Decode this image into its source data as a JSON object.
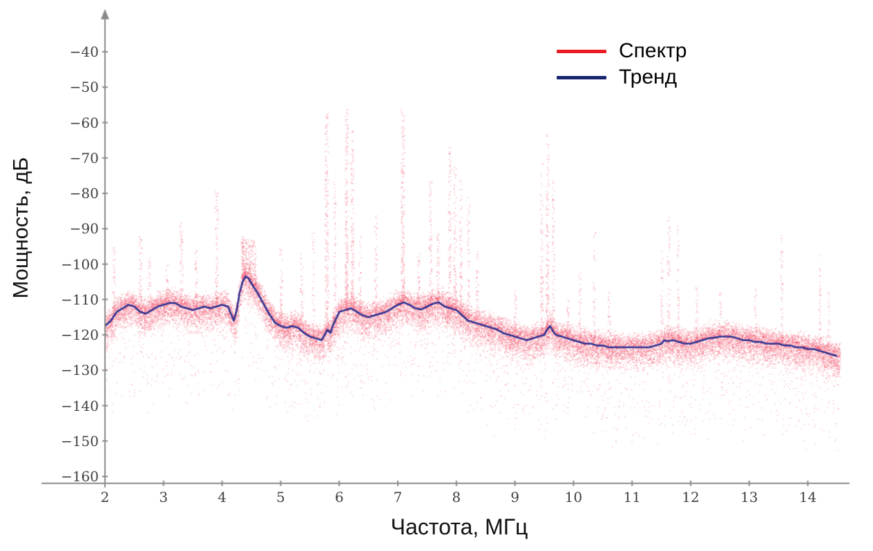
{
  "chart_data": {
    "type": "scatter",
    "title": "",
    "xlabel": "Частота, МГц",
    "ylabel": "Мощность, дБ",
    "xlim": [
      2,
      14.6
    ],
    "ylim": [
      -160,
      -40
    ],
    "grid": false,
    "legend_position": "top-right",
    "axis_color": "#8a8a8a",
    "tick_text_color": "#3f3f3f",
    "xticks": [
      2,
      3,
      4,
      5,
      6,
      7,
      8,
      9,
      10,
      11,
      12,
      13,
      14
    ],
    "xtick_labels": [
      "2",
      "3",
      "4",
      "5",
      "6",
      "7",
      "8",
      "9",
      "10",
      "11",
      "12",
      "13",
      "14"
    ],
    "yticks": [
      -40,
      -50,
      -60,
      -70,
      -80,
      -90,
      -100,
      -110,
      -120,
      -130,
      -140,
      -150,
      -160
    ],
    "ytick_labels": [
      "−40",
      "−50",
      "−60",
      "−70",
      "−80",
      "−90",
      "−100",
      "−110",
      "−120",
      "−130",
      "−140",
      "−150",
      "−160"
    ],
    "legend": [
      {
        "label": "Спектр",
        "color": "#ed1c24"
      },
      {
        "label": "Тренд",
        "color": "#16256e"
      }
    ],
    "series": [
      {
        "name": "Спектр",
        "type": "scatter",
        "color": "#f2415c",
        "point_alpha": 0.4,
        "point_size": 1.3,
        "model": {
          "seed": 42,
          "n_points": 26000,
          "x_min": 2.0,
          "x_max": 14.55,
          "spread_up_db": 5.5,
          "spread_down_db": 8.5,
          "tail_fraction": 0.08,
          "tail_depth_db": 25,
          "deep_tail_x": [
            5.5,
            10.2
          ],
          "deep_tail_fraction": 0.03,
          "deep_tail_extra_db": 8,
          "spikes": [
            {
              "x": 2.15,
              "w": 0.05,
              "top": -95,
              "n": 60
            },
            {
              "x": 2.6,
              "w": 0.05,
              "top": -92,
              "n": 70
            },
            {
              "x": 2.75,
              "w": 0.04,
              "top": -98,
              "n": 50
            },
            {
              "x": 3.05,
              "w": 0.04,
              "top": -100,
              "n": 40
            },
            {
              "x": 3.3,
              "w": 0.05,
              "top": -88,
              "n": 80
            },
            {
              "x": 3.55,
              "w": 0.04,
              "top": -96,
              "n": 50
            },
            {
              "x": 3.9,
              "w": 0.05,
              "top": -79,
              "n": 90
            },
            {
              "x": 4.35,
              "w": 0.06,
              "top": -92,
              "n": 60
            },
            {
              "x": 4.45,
              "w": 0.25,
              "top": -93,
              "n": 300
            },
            {
              "x": 5.0,
              "w": 0.05,
              "top": -95,
              "n": 60
            },
            {
              "x": 5.35,
              "w": 0.05,
              "top": -97,
              "n": 50
            },
            {
              "x": 5.55,
              "w": 0.04,
              "top": -91,
              "n": 50
            },
            {
              "x": 5.78,
              "w": 0.06,
              "top": -57,
              "n": 220
            },
            {
              "x": 5.92,
              "w": 0.04,
              "top": -76,
              "n": 80
            },
            {
              "x": 6.12,
              "w": 0.05,
              "top": -55,
              "n": 240
            },
            {
              "x": 6.22,
              "w": 0.05,
              "top": -62,
              "n": 160
            },
            {
              "x": 6.35,
              "w": 0.04,
              "top": -92,
              "n": 50
            },
            {
              "x": 6.62,
              "w": 0.05,
              "top": -86,
              "n": 70
            },
            {
              "x": 7.08,
              "w": 0.06,
              "top": -56,
              "n": 240
            },
            {
              "x": 7.35,
              "w": 0.04,
              "top": -96,
              "n": 50
            },
            {
              "x": 7.55,
              "w": 0.05,
              "top": -76,
              "n": 90
            },
            {
              "x": 7.68,
              "w": 0.04,
              "top": -90,
              "n": 60
            },
            {
              "x": 7.88,
              "w": 0.05,
              "top": -66,
              "n": 130
            },
            {
              "x": 7.97,
              "w": 0.05,
              "top": -72,
              "n": 110
            },
            {
              "x": 8.07,
              "w": 0.04,
              "top": -76,
              "n": 90
            },
            {
              "x": 8.2,
              "w": 0.04,
              "top": -81,
              "n": 70
            },
            {
              "x": 8.35,
              "w": 0.04,
              "top": -96,
              "n": 50
            },
            {
              "x": 9.0,
              "w": 0.04,
              "top": -106,
              "n": 40
            },
            {
              "x": 9.45,
              "w": 0.05,
              "top": -71,
              "n": 110
            },
            {
              "x": 9.55,
              "w": 0.05,
              "top": -63,
              "n": 170
            },
            {
              "x": 9.65,
              "w": 0.04,
              "top": -76,
              "n": 90
            },
            {
              "x": 9.9,
              "w": 0.04,
              "top": -110,
              "n": 40
            },
            {
              "x": 10.1,
              "w": 0.04,
              "top": -101,
              "n": 40
            },
            {
              "x": 10.35,
              "w": 0.04,
              "top": -91,
              "n": 50
            },
            {
              "x": 10.6,
              "w": 0.04,
              "top": -106,
              "n": 40
            },
            {
              "x": 11.5,
              "w": 0.04,
              "top": -96,
              "n": 50
            },
            {
              "x": 11.62,
              "w": 0.05,
              "top": -86,
              "n": 70
            },
            {
              "x": 11.78,
              "w": 0.04,
              "top": -89,
              "n": 60
            },
            {
              "x": 12.1,
              "w": 0.04,
              "top": -106,
              "n": 40
            },
            {
              "x": 12.5,
              "w": 0.04,
              "top": -108,
              "n": 35
            },
            {
              "x": 13.1,
              "w": 0.04,
              "top": -106,
              "n": 35
            },
            {
              "x": 13.55,
              "w": 0.04,
              "top": -91,
              "n": 60
            },
            {
              "x": 14.2,
              "w": 0.04,
              "top": -96,
              "n": 50
            },
            {
              "x": 14.35,
              "w": 0.04,
              "top": -106,
              "n": 35
            }
          ]
        }
      },
      {
        "name": "Тренд",
        "type": "line",
        "color": "#2e3192",
        "line_width": 2.6,
        "points": [
          [
            2.0,
            -117.5
          ],
          [
            2.1,
            -116
          ],
          [
            2.2,
            -113.5
          ],
          [
            2.3,
            -112.5
          ],
          [
            2.4,
            -111.5
          ],
          [
            2.5,
            -112
          ],
          [
            2.6,
            -113.5
          ],
          [
            2.7,
            -114
          ],
          [
            2.8,
            -113
          ],
          [
            2.9,
            -112
          ],
          [
            3.0,
            -111.5
          ],
          [
            3.1,
            -111
          ],
          [
            3.2,
            -111
          ],
          [
            3.3,
            -112
          ],
          [
            3.4,
            -112.5
          ],
          [
            3.5,
            -113
          ],
          [
            3.6,
            -112.5
          ],
          [
            3.7,
            -112
          ],
          [
            3.8,
            -112.5
          ],
          [
            3.9,
            -112
          ],
          [
            4.0,
            -111.5
          ],
          [
            4.1,
            -112
          ],
          [
            4.15,
            -114
          ],
          [
            4.2,
            -116
          ],
          [
            4.25,
            -113
          ],
          [
            4.3,
            -108
          ],
          [
            4.35,
            -105
          ],
          [
            4.4,
            -103.5
          ],
          [
            4.45,
            -104
          ],
          [
            4.5,
            -105.5
          ],
          [
            4.6,
            -108
          ],
          [
            4.7,
            -111
          ],
          [
            4.8,
            -114
          ],
          [
            4.9,
            -116.5
          ],
          [
            5.0,
            -117.5
          ],
          [
            5.1,
            -118
          ],
          [
            5.2,
            -117.5
          ],
          [
            5.3,
            -118
          ],
          [
            5.4,
            -119.5
          ],
          [
            5.5,
            -120.5
          ],
          [
            5.6,
            -121
          ],
          [
            5.7,
            -121.5
          ],
          [
            5.75,
            -120
          ],
          [
            5.8,
            -118.5
          ],
          [
            5.85,
            -119.5
          ],
          [
            5.9,
            -117
          ],
          [
            6.0,
            -113.5
          ],
          [
            6.1,
            -113
          ],
          [
            6.2,
            -112.5
          ],
          [
            6.3,
            -113.5
          ],
          [
            6.4,
            -114.5
          ],
          [
            6.5,
            -115
          ],
          [
            6.6,
            -114.5
          ],
          [
            6.7,
            -114
          ],
          [
            6.8,
            -113.5
          ],
          [
            6.9,
            -112.5
          ],
          [
            7.0,
            -111.5
          ],
          [
            7.1,
            -110.8
          ],
          [
            7.2,
            -111.5
          ],
          [
            7.3,
            -112.5
          ],
          [
            7.4,
            -112.8
          ],
          [
            7.5,
            -112
          ],
          [
            7.6,
            -111.2
          ],
          [
            7.7,
            -110.8
          ],
          [
            7.8,
            -112
          ],
          [
            7.9,
            -112.5
          ],
          [
            8.0,
            -113
          ],
          [
            8.1,
            -114.5
          ],
          [
            8.2,
            -116
          ],
          [
            8.3,
            -116.5
          ],
          [
            8.4,
            -117
          ],
          [
            8.5,
            -117.5
          ],
          [
            8.6,
            -118
          ],
          [
            8.7,
            -118.5
          ],
          [
            8.8,
            -119.5
          ],
          [
            8.9,
            -120
          ],
          [
            9.0,
            -120.5
          ],
          [
            9.1,
            -121
          ],
          [
            9.2,
            -121.5
          ],
          [
            9.3,
            -121
          ],
          [
            9.4,
            -120.5
          ],
          [
            9.5,
            -120
          ],
          [
            9.55,
            -118.5
          ],
          [
            9.6,
            -117.5
          ],
          [
            9.65,
            -119
          ],
          [
            9.7,
            -120
          ],
          [
            9.8,
            -120.5
          ],
          [
            9.9,
            -121
          ],
          [
            10.0,
            -121.5
          ],
          [
            10.1,
            -122
          ],
          [
            10.2,
            -122.5
          ],
          [
            10.3,
            -122.5
          ],
          [
            10.4,
            -123
          ],
          [
            10.5,
            -123
          ],
          [
            10.6,
            -123.5
          ],
          [
            10.7,
            -123.5
          ],
          [
            10.8,
            -123.5
          ],
          [
            10.9,
            -123.5
          ],
          [
            11.0,
            -123.5
          ],
          [
            11.1,
            -123.5
          ],
          [
            11.2,
            -123.5
          ],
          [
            11.3,
            -123.5
          ],
          [
            11.4,
            -123
          ],
          [
            11.5,
            -122.5
          ],
          [
            11.55,
            -121.5
          ],
          [
            11.6,
            -121.8
          ],
          [
            11.7,
            -121.5
          ],
          [
            11.8,
            -122
          ],
          [
            11.9,
            -122.5
          ],
          [
            12.0,
            -122.5
          ],
          [
            12.1,
            -122
          ],
          [
            12.2,
            -121.5
          ],
          [
            12.3,
            -121
          ],
          [
            12.4,
            -120.8
          ],
          [
            12.5,
            -120.5
          ],
          [
            12.6,
            -120.5
          ],
          [
            12.7,
            -120.5
          ],
          [
            12.8,
            -121
          ],
          [
            12.9,
            -121.5
          ],
          [
            13.0,
            -121.5
          ],
          [
            13.1,
            -122
          ],
          [
            13.2,
            -122
          ],
          [
            13.3,
            -122.5
          ],
          [
            13.4,
            -122.5
          ],
          [
            13.5,
            -122.5
          ],
          [
            13.6,
            -123
          ],
          [
            13.7,
            -123
          ],
          [
            13.8,
            -123.5
          ],
          [
            13.9,
            -123.5
          ],
          [
            14.0,
            -124
          ],
          [
            14.1,
            -124
          ],
          [
            14.2,
            -124.5
          ],
          [
            14.3,
            -125
          ],
          [
            14.4,
            -125.5
          ],
          [
            14.5,
            -126
          ]
        ]
      }
    ]
  }
}
